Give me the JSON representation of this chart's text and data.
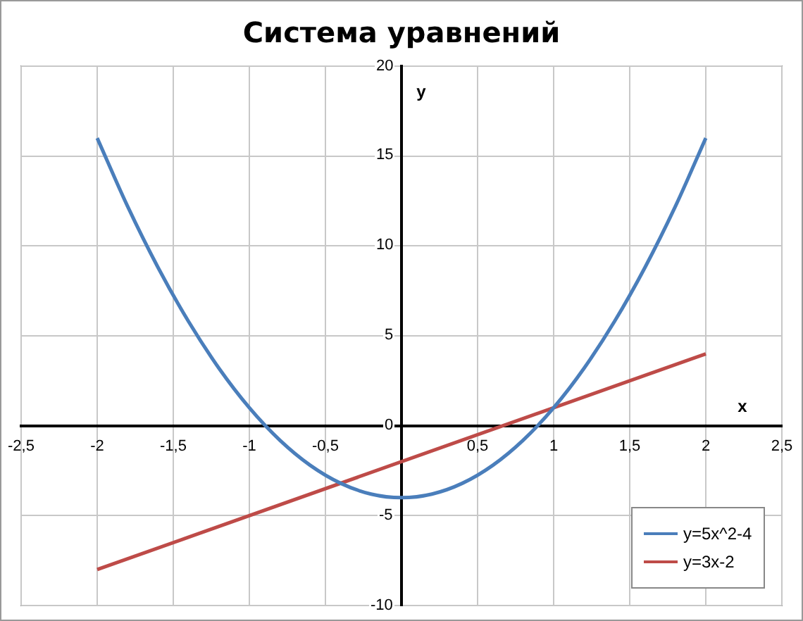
{
  "chart_data": {
    "type": "line",
    "title": "Система уравнений",
    "xlabel": "x",
    "ylabel": "y",
    "xlim": [
      -2.5,
      2.5
    ],
    "xticks": [
      {
        "value": -2.5,
        "label": "-2,5"
      },
      -2,
      {
        "value": -1.5,
        "label": "-1,5"
      },
      -1,
      {
        "value": -0.5,
        "label": "-0,5"
      },
      {
        "value": 0,
        "label": null
      },
      {
        "value": 0.5,
        "label": "0,5"
      },
      1,
      {
        "value": 1.5,
        "label": "1,5"
      },
      2,
      {
        "value": 2.5,
        "label": "2,5"
      }
    ],
    "ylim": [
      -10,
      20
    ],
    "yticks": [
      -10,
      -5,
      0,
      5,
      10,
      15,
      20
    ],
    "series": [
      {
        "name": "y=5x^2-4",
        "color": "#4a7ebb",
        "x": [
          -2,
          -1.8,
          -1.6,
          -1.4,
          -1.2,
          -1,
          -0.8,
          -0.6,
          -0.4,
          -0.2,
          0,
          0.2,
          0.4,
          0.6,
          0.8,
          1,
          1.2,
          1.4,
          1.6,
          1.8,
          2
        ],
        "values": [
          16,
          12.2,
          8.8,
          5.8,
          3.2,
          1,
          -0.8,
          -2.2,
          -3.2,
          -3.8,
          -4,
          -3.8,
          -3.2,
          -2.2,
          -0.8,
          1,
          3.2,
          5.8,
          8.8,
          12.2,
          16
        ]
      },
      {
        "name": "y=3x-2",
        "color": "#be4b48",
        "x": [
          -2,
          2
        ],
        "values": [
          -8,
          4
        ]
      }
    ],
    "grid": true,
    "legend": "bottom right",
    "marker": "none",
    "line_style": "solid"
  }
}
